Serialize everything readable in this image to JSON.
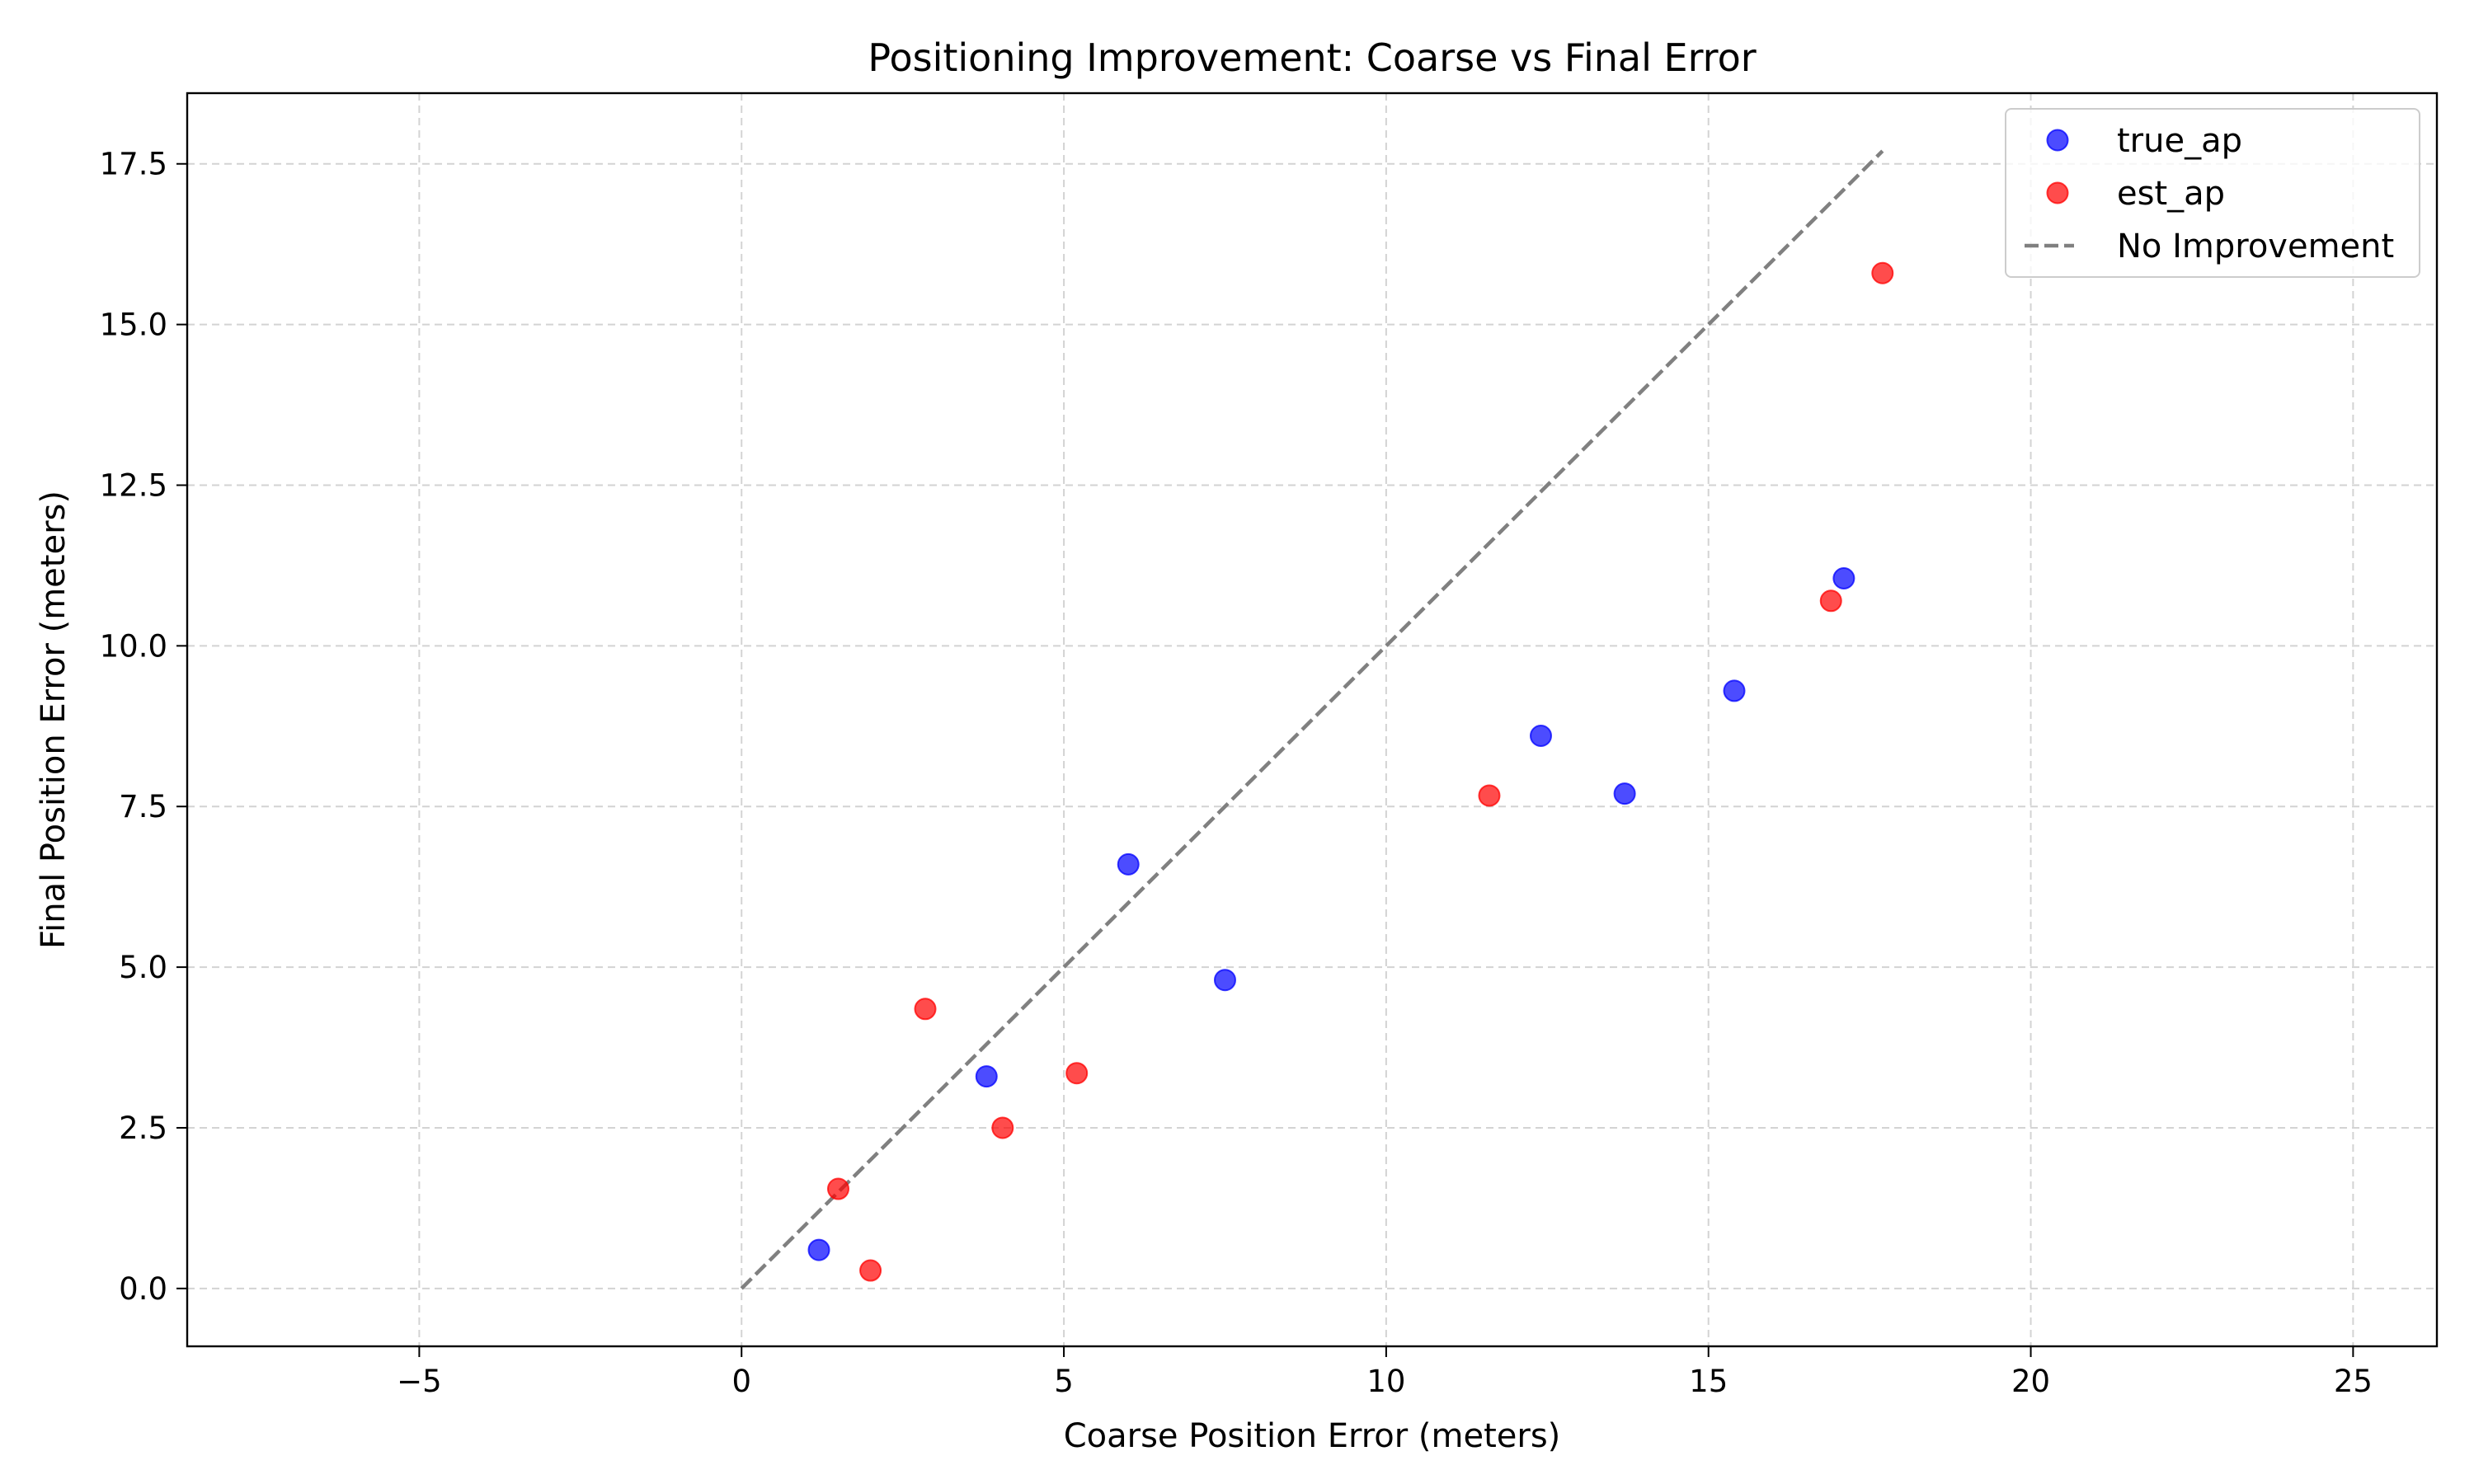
{
  "chart_data": {
    "type": "scatter",
    "title": "Positioning Improvement: Coarse vs Final Error",
    "xlabel": "Coarse Position Error (meters)",
    "ylabel": "Final Position Error (meters)",
    "xlim": [
      -8.6,
      26.3
    ],
    "ylim": [
      -0.9,
      18.6
    ],
    "xticks": [
      -5,
      0,
      5,
      10,
      15,
      20,
      25
    ],
    "xtick_labels": [
      "−5",
      "0",
      "5",
      "10",
      "15",
      "20",
      "25"
    ],
    "yticks": [
      0.0,
      2.5,
      5.0,
      7.5,
      10.0,
      12.5,
      15.0,
      17.5
    ],
    "ytick_labels": [
      "0.0",
      "2.5",
      "5.0",
      "7.5",
      "10.0",
      "12.5",
      "15.0",
      "17.5"
    ],
    "grid": true,
    "legend_position": "top-right",
    "series": [
      {
        "name": "true_ap",
        "kind": "scatter",
        "color": "#0000ff",
        "points": [
          {
            "x": 1.2,
            "y": 0.6
          },
          {
            "x": 3.8,
            "y": 3.3
          },
          {
            "x": 6.0,
            "y": 6.6
          },
          {
            "x": 7.5,
            "y": 4.8
          },
          {
            "x": 12.4,
            "y": 8.6
          },
          {
            "x": 13.7,
            "y": 7.7
          },
          {
            "x": 15.4,
            "y": 9.3
          },
          {
            "x": 17.1,
            "y": 11.05
          }
        ]
      },
      {
        "name": "est_ap",
        "kind": "scatter",
        "color": "#ff0000",
        "points": [
          {
            "x": 1.5,
            "y": 1.55
          },
          {
            "x": 2.0,
            "y": 0.28
          },
          {
            "x": 2.85,
            "y": 4.35
          },
          {
            "x": 4.05,
            "y": 2.5
          },
          {
            "x": 5.2,
            "y": 3.35
          },
          {
            "x": 11.6,
            "y": 7.67
          },
          {
            "x": 16.9,
            "y": 10.7
          },
          {
            "x": 17.7,
            "y": 15.8
          }
        ]
      },
      {
        "name": "No Improvement",
        "kind": "line",
        "color": "#808080",
        "points": [
          {
            "x": 0,
            "y": 0
          },
          {
            "x": 17.7,
            "y": 17.7
          }
        ]
      }
    ]
  }
}
